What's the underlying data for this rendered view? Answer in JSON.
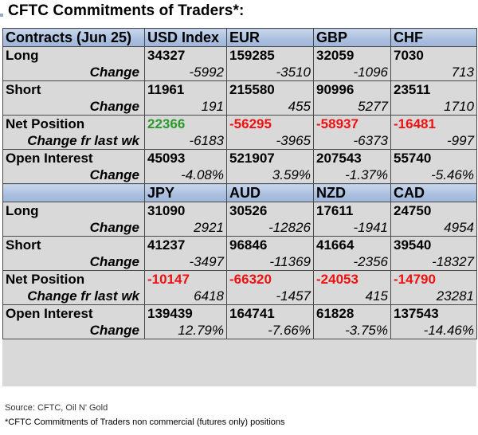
{
  "title": "CFTC Commitments of Traders*:",
  "table1": {
    "header": [
      "Contracts (Jun 25)",
      "USD Index",
      "EUR",
      "GBP",
      "CHF"
    ],
    "long": {
      "label": "Long",
      "values": [
        "34327",
        "159285",
        "32059",
        "7030"
      ]
    },
    "long_change": {
      "label": "Change",
      "values": [
        "-5992",
        "-3510",
        "-1096",
        "713"
      ]
    },
    "short": {
      "label": "Short",
      "values": [
        "11961",
        "215580",
        "90996",
        "23511"
      ]
    },
    "short_change": {
      "label": "Change",
      "values": [
        "191",
        "455",
        "5277",
        "1710"
      ]
    },
    "net": {
      "label": "Net Position",
      "values": [
        "22366",
        "-56295",
        "-58937",
        "-16481"
      ]
    },
    "net_change": {
      "label": "Change fr last wk",
      "values": [
        "-6183",
        "-3965",
        "-6373",
        "-997"
      ]
    },
    "oi": {
      "label": "Open Interest",
      "values": [
        "45093",
        "521907",
        "207543",
        "55740"
      ]
    },
    "oi_change": {
      "label": "Change",
      "values": [
        "-4.08%",
        "3.59%",
        "-1.37%",
        "-5.46%"
      ]
    }
  },
  "table2": {
    "header": [
      "",
      "JPY",
      "AUD",
      "NZD",
      "CAD"
    ],
    "long": {
      "label": "Long",
      "values": [
        "31090",
        "30526",
        "17611",
        "24750"
      ]
    },
    "long_change": {
      "label": "Change",
      "values": [
        "2921",
        "-12826",
        "-1941",
        "4954"
      ]
    },
    "short": {
      "label": "Short",
      "values": [
        "41237",
        "96846",
        "41664",
        "39540"
      ]
    },
    "short_change": {
      "label": "Change",
      "values": [
        "-3497",
        "-11369",
        "-2356",
        "-18327"
      ]
    },
    "net": {
      "label": "Net Position",
      "values": [
        "-10147",
        "-66320",
        "-24053",
        "-14790"
      ]
    },
    "net_change": {
      "label": "Change fr last wk",
      "values": [
        "6418",
        "-1457",
        "415",
        "23281"
      ]
    },
    "oi": {
      "label": "Open Interest",
      "values": [
        "139439",
        "164741",
        "61828",
        "137543"
      ]
    },
    "oi_change": {
      "label": "Change",
      "values": [
        "12.79%",
        "-7.66%",
        "-3.75%",
        "-14.46%"
      ]
    }
  },
  "footer": {
    "source": "Source: CFTC, Oil N' Gold",
    "note": "*CFTC Commitments of Traders non commercial (futures only) positions"
  },
  "colors": {
    "positive": "#2a9a2a",
    "negative": "#ee1111",
    "header_bg": "#aabfdf"
  }
}
